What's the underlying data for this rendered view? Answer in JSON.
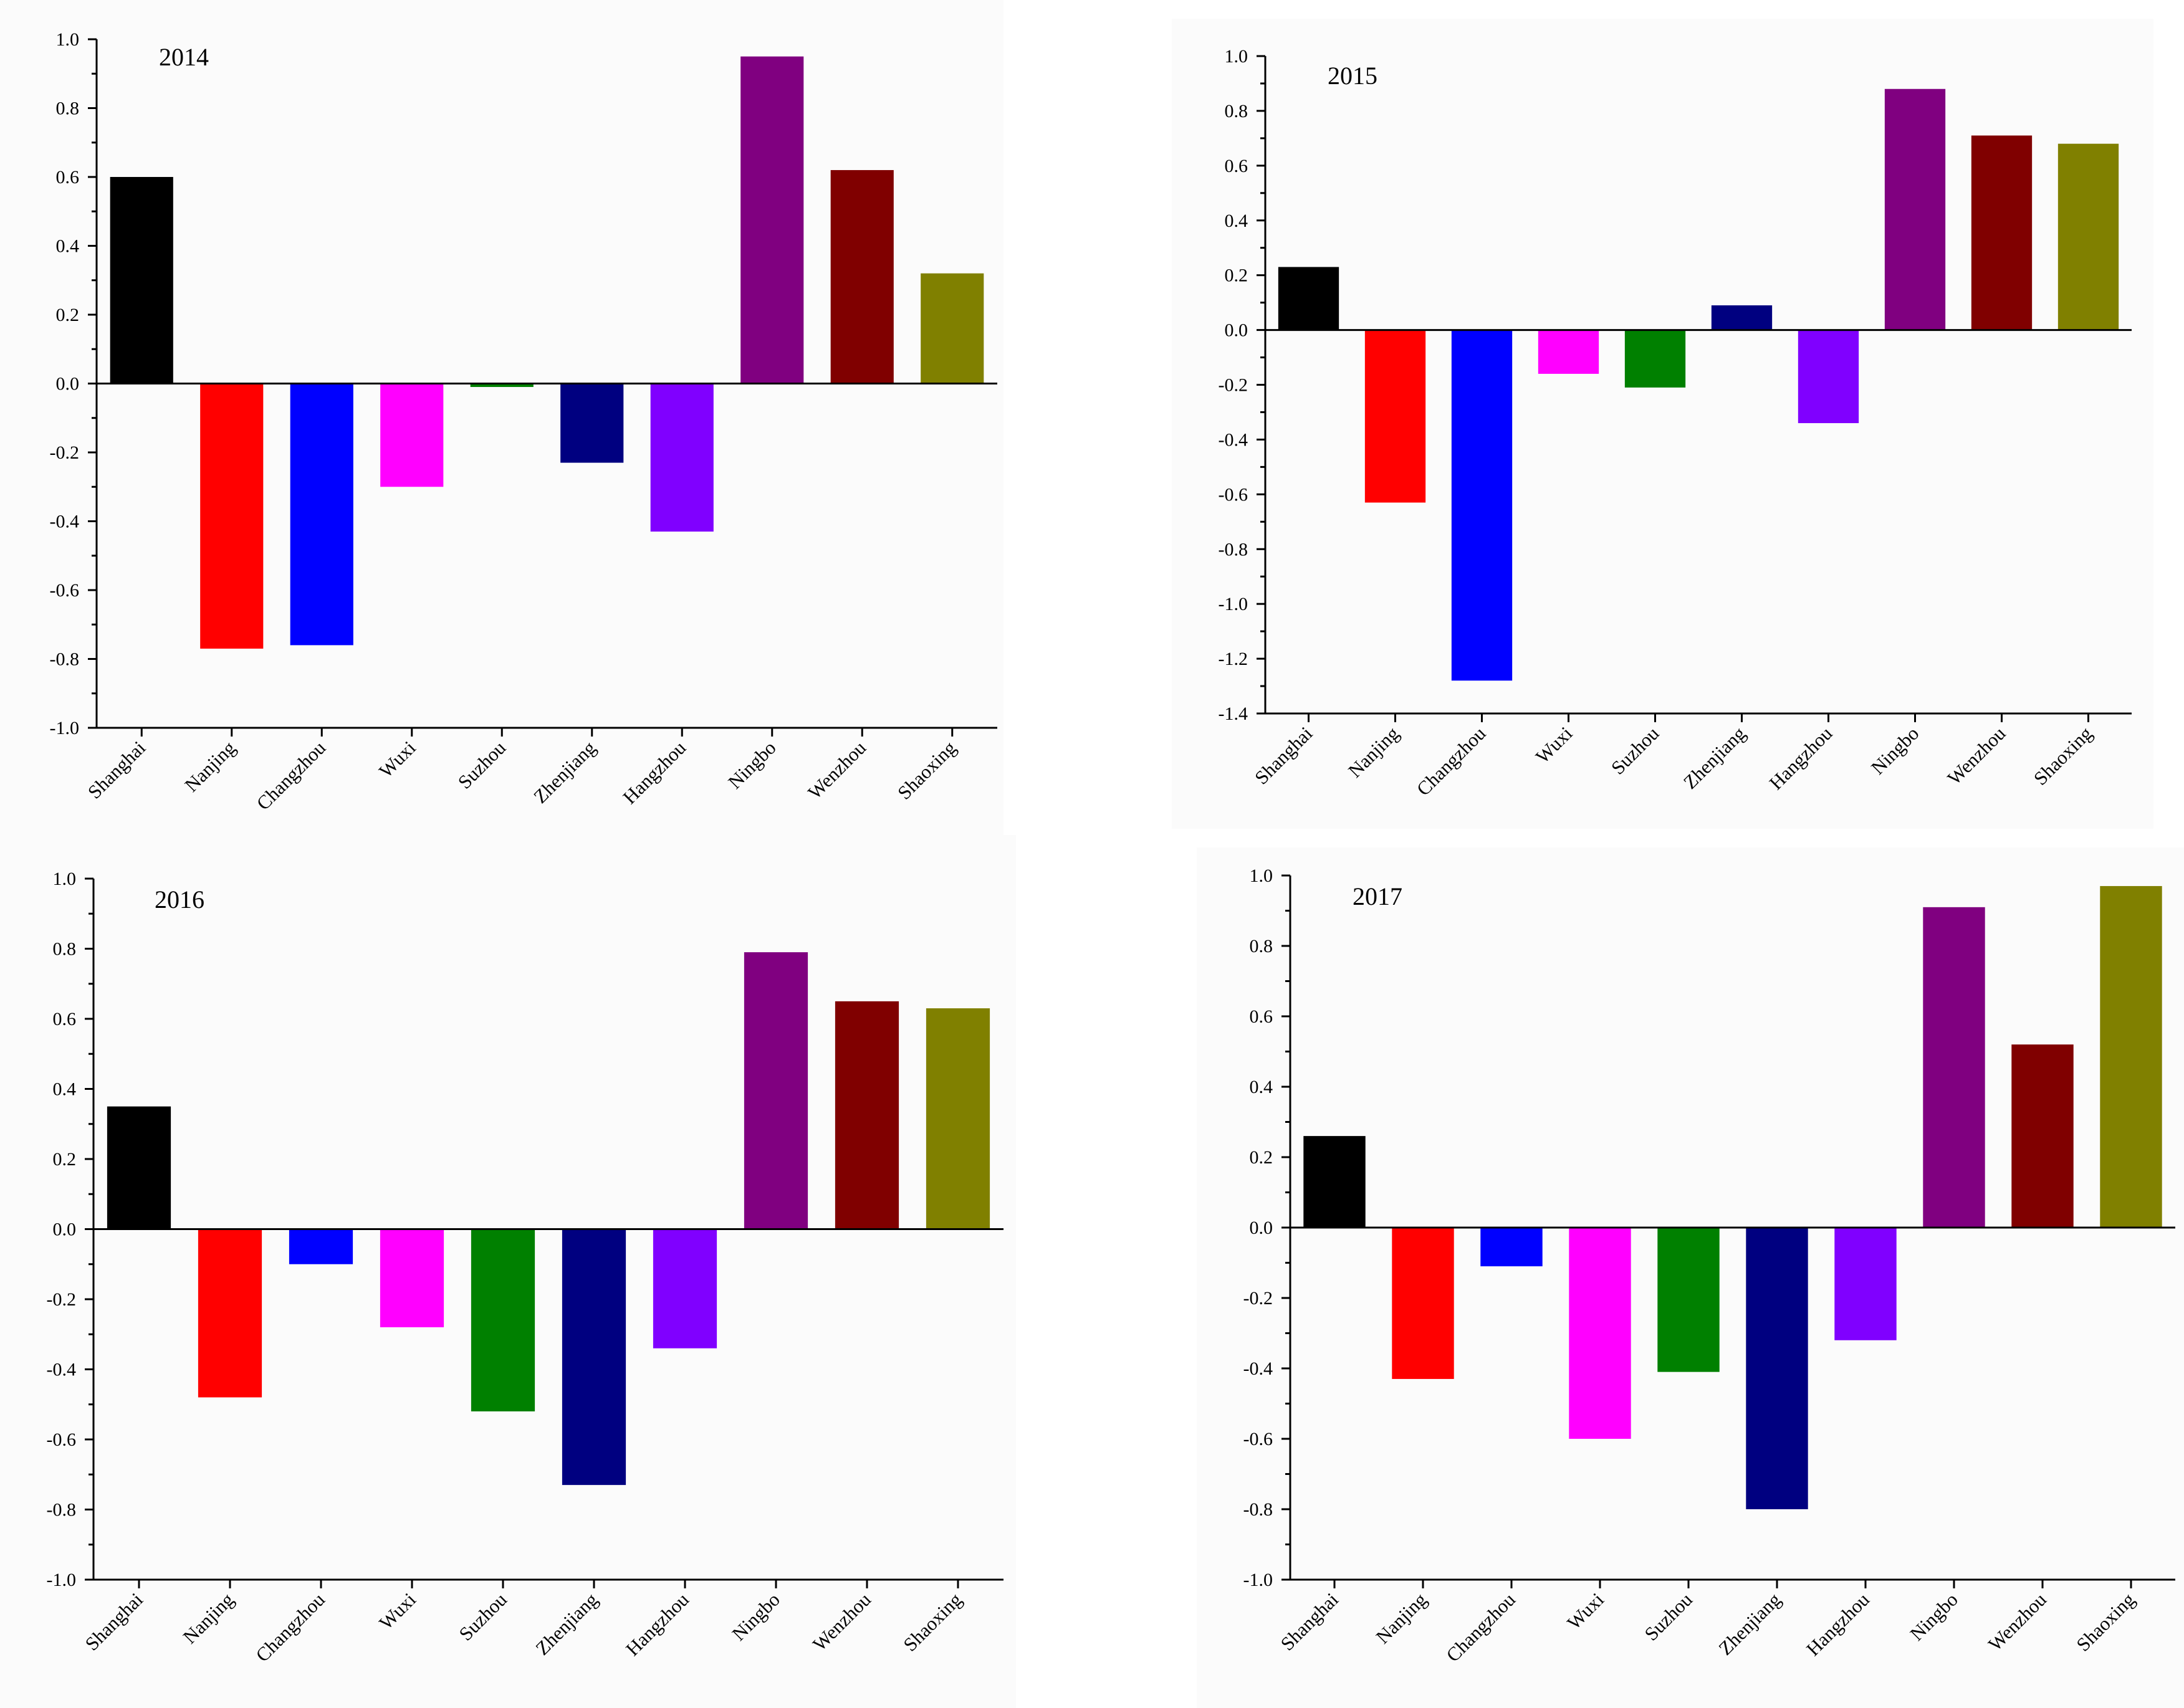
{
  "chart_data": [
    {
      "type": "bar",
      "title": "2014",
      "categories": [
        "Shanghai",
        "Nanjing",
        "Changzhou",
        "Wuxi",
        "Suzhou",
        "Zhenjiang",
        "Hangzhou",
        "Ningbo",
        "Wenzhou",
        "Shaoxing"
      ],
      "values": [
        0.6,
        -0.77,
        -0.76,
        -0.3,
        -0.01,
        -0.23,
        -0.43,
        0.95,
        0.62,
        0.32
      ],
      "colors": [
        "#000000",
        "#ff0000",
        "#0000ff",
        "#ff00ff",
        "#008000",
        "#000080",
        "#8000ff",
        "#800080",
        "#800000",
        "#808000"
      ],
      "ylim": [
        -1.0,
        1.0
      ],
      "yticks": [
        "-1.0",
        "-0.8",
        "-0.6",
        "-0.4",
        "-0.2",
        "0.0",
        "0.2",
        "0.4",
        "0.6",
        "0.8",
        "1.0"
      ],
      "xlabel": "",
      "ylabel": ""
    },
    {
      "type": "bar",
      "title": "2015",
      "categories": [
        "Shanghai",
        "Nanjing",
        "Changzhou",
        "Wuxi",
        "Suzhou",
        "Zhenjiang",
        "Hangzhou",
        "Ningbo",
        "Wenzhou",
        "Shaoxing"
      ],
      "values": [
        0.23,
        -0.63,
        -1.28,
        -0.16,
        -0.21,
        0.09,
        -0.34,
        0.88,
        0.71,
        0.68
      ],
      "colors": [
        "#000000",
        "#ff0000",
        "#0000ff",
        "#ff00ff",
        "#008000",
        "#000080",
        "#8000ff",
        "#800080",
        "#800000",
        "#808000"
      ],
      "ylim": [
        -1.4,
        1.0
      ],
      "yticks": [
        "-1.4",
        "-1.2",
        "-1.0",
        "-0.8",
        "-0.6",
        "-0.4",
        "-0.2",
        "0.0",
        "0.2",
        "0.4",
        "0.6",
        "0.8",
        "1.0"
      ],
      "xlabel": "",
      "ylabel": ""
    },
    {
      "type": "bar",
      "title": "2016",
      "categories": [
        "Shanghai",
        "Nanjing",
        "Changzhou",
        "Wuxi",
        "Suzhou",
        "Zhenjiang",
        "Hangzhou",
        "Ningbo",
        "Wenzhou",
        "Shaoxing"
      ],
      "values": [
        0.35,
        -0.48,
        -0.1,
        -0.28,
        -0.52,
        -0.73,
        -0.34,
        0.79,
        0.65,
        0.63
      ],
      "colors": [
        "#000000",
        "#ff0000",
        "#0000ff",
        "#ff00ff",
        "#008000",
        "#000080",
        "#8000ff",
        "#800080",
        "#800000",
        "#808000"
      ],
      "ylim": [
        -1.0,
        1.0
      ],
      "yticks": [
        "-1.0",
        "-0.8",
        "-0.6",
        "-0.4",
        "-0.2",
        "0.0",
        "0.2",
        "0.4",
        "0.6",
        "0.8",
        "1.0"
      ],
      "xlabel": "",
      "ylabel": ""
    },
    {
      "type": "bar",
      "title": "2017",
      "categories": [
        "Shanghai",
        "Nanjing",
        "Changzhou",
        "Wuxi",
        "Suzhou",
        "Zhenjiang",
        "Hangzhou",
        "Ningbo",
        "Wenzhou",
        "Shaoxing"
      ],
      "values": [
        0.26,
        -0.43,
        -0.11,
        -0.6,
        -0.41,
        -0.8,
        -0.32,
        0.91,
        0.52,
        0.97
      ],
      "colors": [
        "#000000",
        "#ff0000",
        "#0000ff",
        "#ff00ff",
        "#008000",
        "#000080",
        "#8000ff",
        "#800080",
        "#800000",
        "#808000"
      ],
      "ylim": [
        -1.0,
        1.0
      ],
      "yticks": [
        "-1.0",
        "-0.8",
        "-0.6",
        "-0.4",
        "-0.2",
        "0.0",
        "0.2",
        "0.4",
        "0.6",
        "0.8",
        "1.0"
      ],
      "xlabel": "",
      "ylabel": ""
    }
  ]
}
